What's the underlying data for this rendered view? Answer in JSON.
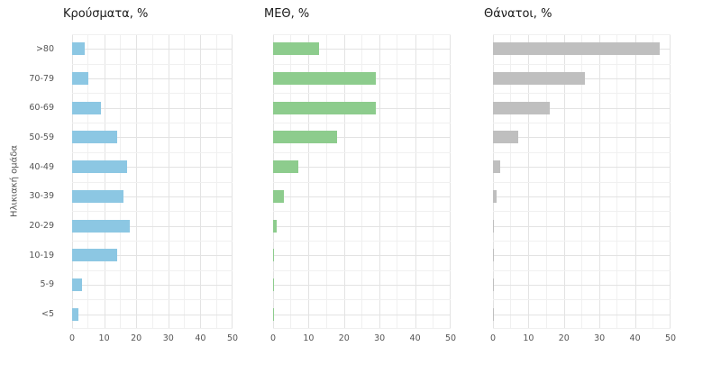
{
  "figure": {
    "y_axis_label": "Ηλικιακή ομάδα"
  },
  "chart_data": [
    {
      "type": "bar",
      "orientation": "horizontal",
      "title": "Κρούσματα, %",
      "categories": [
        ">80",
        "70-79",
        "60-69",
        "50-59",
        "40-49",
        "30-39",
        "20-29",
        "10-19",
        "5-9",
        "<5"
      ],
      "values": [
        4,
        5,
        9,
        14,
        17,
        16,
        18,
        14,
        3,
        2
      ],
      "color": "#8cc7e3",
      "xlim": [
        0,
        50
      ],
      "xticks": [
        0,
        10,
        20,
        30,
        40,
        50
      ],
      "xlabel": "",
      "ylabel": "Ηλικιακή ομάδα",
      "grid": true,
      "legend": "none"
    },
    {
      "type": "bar",
      "orientation": "horizontal",
      "title": "ΜΕΘ, %",
      "categories": [
        ">80",
        "70-79",
        "60-69",
        "50-59",
        "40-49",
        "30-39",
        "20-29",
        "10-19",
        "5-9",
        "<5"
      ],
      "values": [
        13,
        29,
        29,
        18,
        7,
        3,
        1,
        0.3,
        0.2,
        0.2
      ],
      "color": "#8dcc8d",
      "xlim": [
        0,
        50
      ],
      "xticks": [
        0,
        10,
        20,
        30,
        40,
        50
      ],
      "xlabel": "",
      "ylabel": "",
      "grid": true,
      "legend": "none"
    },
    {
      "type": "bar",
      "orientation": "horizontal",
      "title": "Θάνατοι, %",
      "categories": [
        ">80",
        "70-79",
        "60-69",
        "50-59",
        "40-49",
        "30-39",
        "20-29",
        "10-19",
        "5-9",
        "<5"
      ],
      "values": [
        47,
        26,
        16,
        7,
        2,
        1,
        0.3,
        0.2,
        0.2,
        0.3
      ],
      "color": "#bfbfbf",
      "xlim": [
        0,
        50
      ],
      "xticks": [
        0,
        10,
        20,
        30,
        40,
        50
      ],
      "xlabel": "",
      "ylabel": "",
      "grid": true,
      "legend": "none"
    }
  ]
}
